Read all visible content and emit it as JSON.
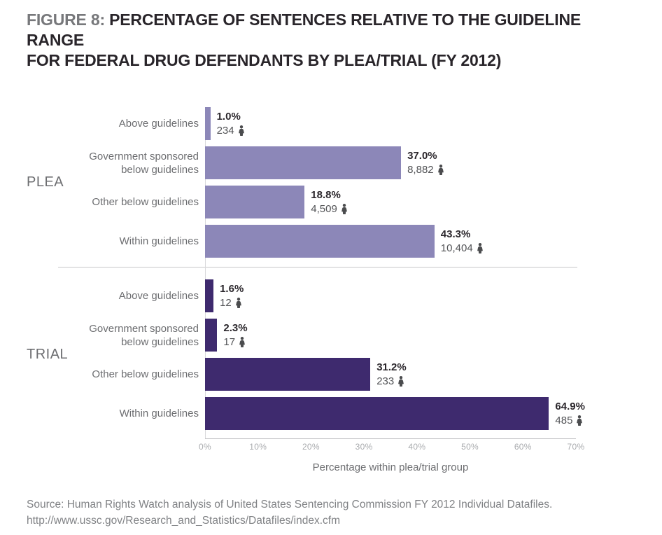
{
  "title": {
    "prefix": "FIGURE 8:",
    "line1": "PERCENTAGE OF SENTENCES RELATIVE TO THE GUIDELINE RANGE",
    "line2": "FOR FEDERAL DRUG DEFENDANTS BY PLEA/TRIAL (FY 2012)"
  },
  "chart_data": {
    "type": "bar",
    "orientation": "horizontal",
    "xlabel": "Percentage within plea/trial group",
    "xlim": [
      0,
      70
    ],
    "x_ticks": [
      "0%",
      "10%",
      "20%",
      "30%",
      "40%",
      "50%",
      "60%",
      "70%"
    ],
    "grid": false,
    "groups": [
      {
        "label": "PLEA",
        "color": "#8C87B8",
        "bars": [
          {
            "category": "Above guidelines",
            "pct": 1.0,
            "pct_label": "1.0%",
            "count": 234,
            "count_label": "234"
          },
          {
            "category": "Government sponsored below guidelines",
            "pct": 37.0,
            "pct_label": "37.0%",
            "count": 8882,
            "count_label": "8,882"
          },
          {
            "category": "Other below guidelines",
            "pct": 18.8,
            "pct_label": "18.8%",
            "count": 4509,
            "count_label": "4,509"
          },
          {
            "category": "Within guidelines",
            "pct": 43.3,
            "pct_label": "43.3%",
            "count": 10404,
            "count_label": "10,404"
          }
        ]
      },
      {
        "label": "TRIAL",
        "color": "#3E2A6E",
        "bars": [
          {
            "category": "Above guidelines",
            "pct": 1.6,
            "pct_label": "1.6%",
            "count": 12,
            "count_label": "12"
          },
          {
            "category": "Government sponsored below guidelines",
            "pct": 2.3,
            "pct_label": "2.3%",
            "count": 17,
            "count_label": "17"
          },
          {
            "category": "Other below guidelines",
            "pct": 31.2,
            "pct_label": "31.2%",
            "count": 233,
            "count_label": "233"
          },
          {
            "category": "Within guidelines",
            "pct": 64.9,
            "pct_label": "64.9%",
            "count": 485,
            "count_label": "485"
          }
        ]
      }
    ]
  },
  "icons": {
    "count_icon": "person-icon"
  },
  "colors": {
    "plea_bar": "#8C87B8",
    "trial_bar": "#3E2A6E",
    "icon": "#4b4c4e",
    "axis_line": "#c2c3c5",
    "divider_line": "#c6c7c9",
    "label_text": "#6d6e71",
    "tick_text": "#a9abae"
  },
  "source": {
    "line1": "Source: Human Rights Watch analysis of United States Sentencing Commission FY 2012 Individual Datafiles.",
    "line2": "http://www.ussc.gov/Research_and_Statistics/Datafiles/index.cfm"
  }
}
